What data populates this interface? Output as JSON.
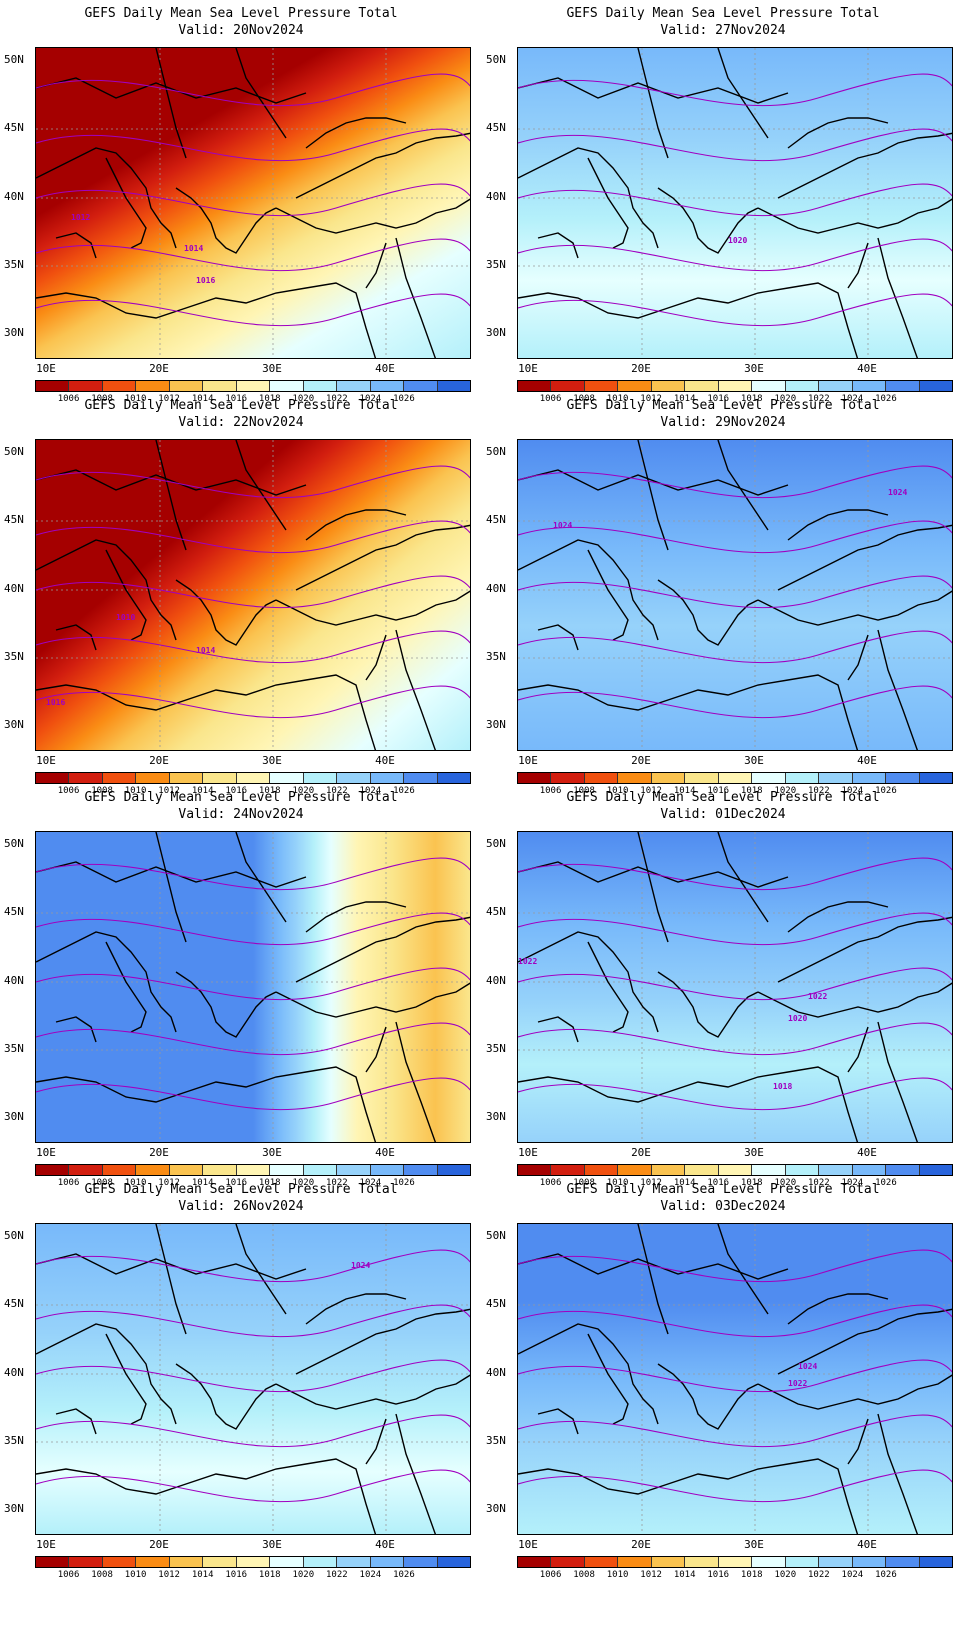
{
  "panels": [
    {
      "title": "GEFS Daily Mean Sea Level Pressure Total",
      "valid": "Valid: 20Nov2024",
      "scheme": "warm-nw",
      "contour_labels": [
        {
          "text": "1012"
        },
        {
          "text": "1014"
        },
        {
          "text": "1016"
        }
      ]
    },
    {
      "title": "GEFS Daily Mean Sea Level Pressure Total",
      "valid": "Valid: 27Nov2024",
      "scheme": "blue-light",
      "contour_labels": [
        {
          "text": "1020"
        }
      ]
    },
    {
      "title": "GEFS Daily Mean Sea Level Pressure Total",
      "valid": "Valid: 22Nov2024",
      "scheme": "warm-nw-2",
      "contour_labels": [
        {
          "text": "1010"
        },
        {
          "text": "1014"
        },
        {
          "text": "1016"
        }
      ]
    },
    {
      "title": "GEFS Daily Mean Sea Level Pressure Total",
      "valid": "Valid: 29Nov2024",
      "scheme": "blue-mid",
      "contour_labels": [
        {
          "text": "1024"
        },
        {
          "text": "1024"
        }
      ]
    },
    {
      "title": "GEFS Daily Mean Sea Level Pressure Total",
      "valid": "Valid: 24Nov2024",
      "scheme": "blue-west-warm-east",
      "contour_labels": []
    },
    {
      "title": "GEFS Daily Mean Sea Level Pressure Total",
      "valid": "Valid: 01Dec2024",
      "scheme": "blue-mid-2",
      "contour_labels": [
        {
          "text": "1022"
        },
        {
          "text": "1022"
        },
        {
          "text": "1020"
        },
        {
          "text": "1018"
        }
      ]
    },
    {
      "title": "GEFS Daily Mean Sea Level Pressure Total",
      "valid": "Valid: 26Nov2024",
      "scheme": "blue-light-2",
      "contour_labels": [
        {
          "text": "1024"
        }
      ]
    },
    {
      "title": "GEFS Daily Mean Sea Level Pressure Total",
      "valid": "Valid: 03Dec2024",
      "scheme": "blue-dark",
      "contour_labels": [
        {
          "text": "1024"
        },
        {
          "text": "1022"
        }
      ]
    }
  ],
  "axes": {
    "lat_labels": [
      "50N",
      "45N",
      "40N",
      "35N",
      "30N"
    ],
    "lon_labels": [
      "10E",
      "20E",
      "30E",
      "40E"
    ]
  },
  "colorbar": {
    "colors": [
      "#a50000",
      "#d21e0f",
      "#f0500f",
      "#fa8c14",
      "#fac350",
      "#fae68c",
      "#fff5b4",
      "#e6ffff",
      "#b4f0fa",
      "#96d2fa",
      "#78b9fa",
      "#508cf0",
      "#2864dc"
    ],
    "labels": [
      "1006",
      "1008",
      "1010",
      "1012",
      "1014",
      "1016",
      "1018",
      "1020",
      "1022",
      "1024",
      "1026"
    ]
  },
  "colors": {
    "contour": "#a000c0",
    "coast": "#000000",
    "grid": "#999999"
  }
}
